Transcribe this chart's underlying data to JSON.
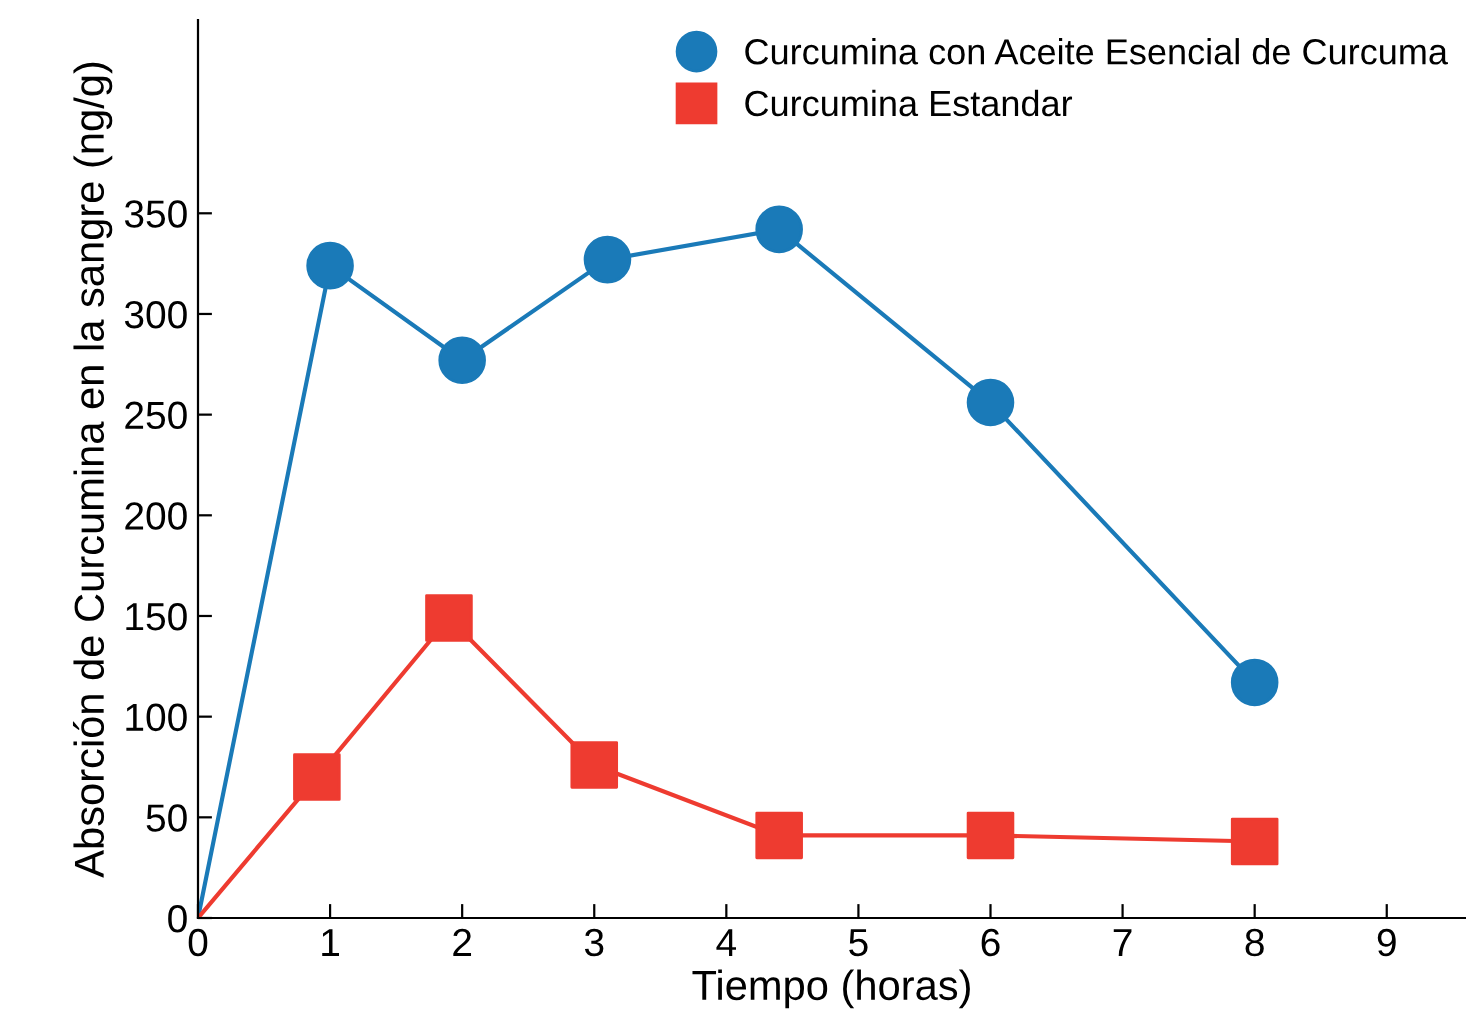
{
  "chart_data": {
    "type": "line",
    "xlabel": "Tiempo (horas)",
    "ylabel": "Absorción de Curcumina en la sangre (ng/g)",
    "series": [
      {
        "name": "Curcumina con Aceite Esencial de Curcuma",
        "color": "#1a7ab8",
        "marker": "circle",
        "x": [
          0,
          1,
          2,
          3.1,
          4.4,
          6,
          8
        ],
        "values": [
          0,
          324,
          277,
          327,
          342,
          256,
          117
        ]
      },
      {
        "name": "Curcumina Estandar",
        "color": "#ee3b30",
        "marker": "square",
        "x": [
          0,
          0.9,
          1.9,
          3,
          4.4,
          6,
          8
        ],
        "values": [
          0,
          70,
          149,
          76,
          41,
          41,
          38
        ]
      }
    ],
    "xlim": [
      0,
      9.6
    ],
    "xticks": [
      0,
      1,
      2,
      3,
      4,
      5,
      6,
      7,
      8,
      9
    ],
    "ylim": [
      0,
      446
    ],
    "yticks": [
      0,
      50,
      100,
      150,
      200,
      250,
      300,
      350
    ],
    "grid": false,
    "legend": "top right",
    "line_style": "solid"
  }
}
